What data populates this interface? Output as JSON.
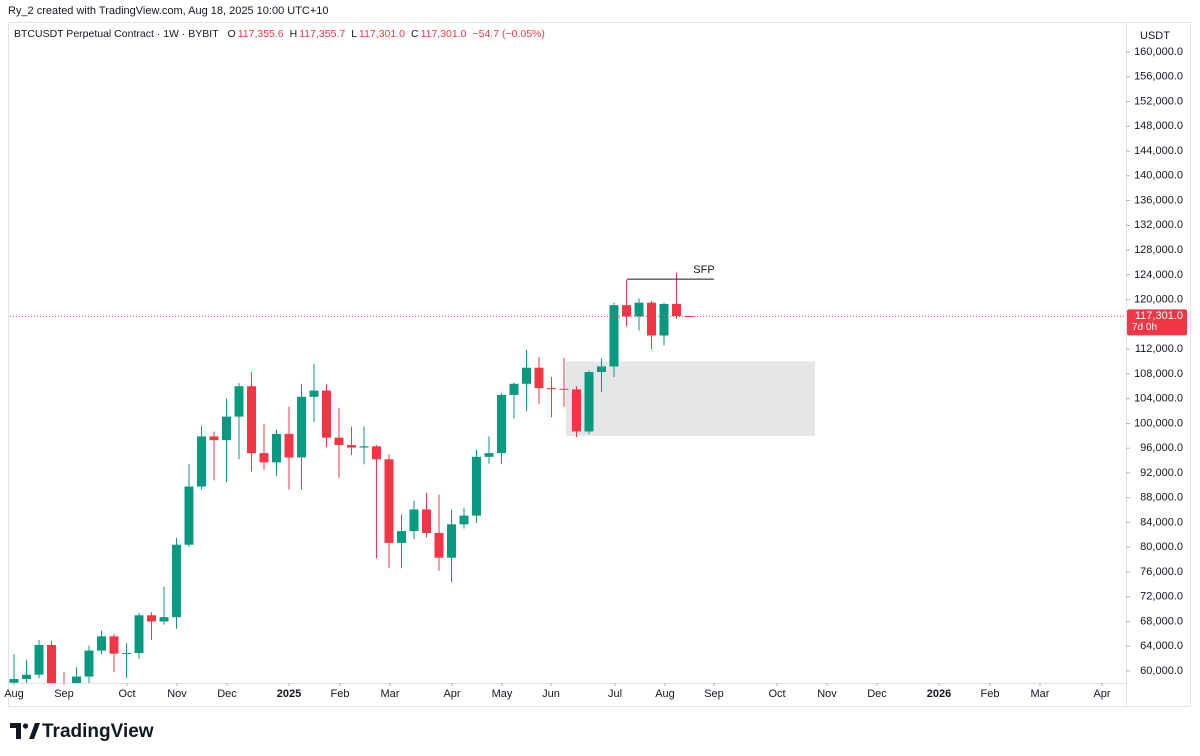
{
  "chart_data": {
    "type": "candlestick",
    "caption": "Ry_2 created with TradingView.com, Aug 18, 2025 10:00 UTC+10",
    "symbol": "BTCUSDT Perpetual Contract · 1W · BYBIT",
    "ohlc_legend": [
      {
        "key": "O",
        "value": "117,355.6"
      },
      {
        "key": "H",
        "value": "117,355.7"
      },
      {
        "key": "L",
        "value": "117,301.0"
      },
      {
        "key": "C",
        "value": "117,301.0"
      }
    ],
    "change": "−54.7 (−0.05%)",
    "currency": "USDT",
    "last_price_label": "117,301.0",
    "countdown": "7d 0h",
    "up_color": "#089981",
    "down_color": "#f23645",
    "open": [
      58100,
      58700,
      59400,
      64200,
      57300,
      54800,
      59100,
      63300,
      65600,
      62800,
      62900,
      69000,
      68000,
      68700,
      80400,
      89800,
      97900,
      97300,
      101100,
      106000,
      95200,
      93700,
      98300,
      94500,
      104300,
      105300,
      97700,
      96500,
      96100,
      96300,
      94200,
      80700,
      82600,
      86100,
      82300,
      78300,
      83700,
      85100,
      94600,
      95200,
      104600,
      106400,
      109000,
      105700,
      105600,
      105500,
      98700,
      108300,
      109200,
      119100,
      117300,
      119500,
      114200,
      119300,
      117355.6
    ],
    "high": [
      62700,
      61800,
      65000,
      64900,
      59800,
      60600,
      64100,
      66500,
      66000,
      64500,
      69400,
      69500,
      73600,
      81500,
      93400,
      99600,
      98700,
      104000,
      106500,
      108300,
      99900,
      99000,
      102700,
      106400,
      109600,
      106300,
      102500,
      99500,
      99500,
      96500,
      95000,
      85300,
      87500,
      88800,
      88500,
      86100,
      86400,
      95700,
      97900,
      104900,
      106600,
      111900,
      110700,
      107500,
      110600,
      106000,
      108500,
      110500,
      119500,
      123200,
      120200,
      119800,
      119500,
      124400,
      117355.7
    ],
    "low": [
      54600,
      56100,
      58800,
      57200,
      52500,
      52500,
      57500,
      62700,
      59800,
      58900,
      62000,
      65000,
      67500,
      66800,
      80100,
      89300,
      90800,
      90500,
      94200,
      92200,
      92500,
      91500,
      89300,
      89300,
      100200,
      96200,
      91200,
      94900,
      93400,
      78200,
      76600,
      76600,
      81300,
      81600,
      76200,
      74400,
      83000,
      83900,
      93500,
      93400,
      100800,
      102000,
      103100,
      101000,
      102700,
      97800,
      98300,
      105100,
      107500,
      115700,
      115000,
      112000,
      112600,
      116900,
      117301
    ],
    "close": [
      58700,
      59400,
      64200,
      57300,
      54800,
      59100,
      63300,
      65600,
      62800,
      62900,
      69000,
      68000,
      68700,
      80400,
      89800,
      97900,
      97300,
      101100,
      106000,
      95200,
      93700,
      98300,
      94500,
      104300,
      105300,
      97700,
      96500,
      96100,
      96300,
      94200,
      80700,
      82600,
      86100,
      82300,
      78300,
      83700,
      85100,
      94600,
      95200,
      104600,
      106400,
      109000,
      105700,
      105600,
      105500,
      98700,
      108300,
      109200,
      119100,
      117300,
      119500,
      114200,
      119300,
      117356,
      117301
    ],
    "zone": {
      "low": 98000,
      "high": 110000,
      "color": "#e0e1e3"
    },
    "annotation": {
      "label": "SFP",
      "price": 123300
    },
    "xlim": [
      -0.32,
      88.96
    ],
    "xticks": [
      {
        "value": 0,
        "label": "Aug"
      },
      {
        "value": 4,
        "label": "Sep"
      },
      {
        "value": 9.04,
        "label": "Oct"
      },
      {
        "value": 13.04,
        "label": "Nov"
      },
      {
        "value": 17.04,
        "label": "Dec"
      },
      {
        "value": 22,
        "label": "2025"
      },
      {
        "value": 26.08,
        "label": "Feb"
      },
      {
        "value": 30.08,
        "label": "Mar"
      },
      {
        "value": 35.04,
        "label": "Apr"
      },
      {
        "value": 39.04,
        "label": "May"
      },
      {
        "value": 42.96,
        "label": "Jun"
      },
      {
        "value": 48.08,
        "label": "Jul"
      },
      {
        "value": 52.08,
        "label": "Aug"
      },
      {
        "value": 56,
        "label": "Sep"
      },
      {
        "value": 61.04,
        "label": "Oct"
      },
      {
        "value": 65.04,
        "label": "Nov"
      },
      {
        "value": 69.04,
        "label": "Dec"
      },
      {
        "value": 74,
        "label": "2026"
      },
      {
        "value": 78.08,
        "label": "Feb"
      },
      {
        "value": 82.08,
        "label": "Mar"
      },
      {
        "value": 87.04,
        "label": "Apr"
      }
    ],
    "ylim": [
      58060,
      164850
    ],
    "yticks": [
      {
        "value": 60000,
        "label": "60,000.0"
      },
      {
        "value": 64000,
        "label": "64,000.0"
      },
      {
        "value": 68000,
        "label": "68,000.0"
      },
      {
        "value": 72000,
        "label": "72,000.0"
      },
      {
        "value": 76000,
        "label": "76,000.0"
      },
      {
        "value": 80000,
        "label": "80,000.0"
      },
      {
        "value": 84000,
        "label": "84,000.0"
      },
      {
        "value": 88000,
        "label": "88,000.0"
      },
      {
        "value": 92000,
        "label": "92,000.0"
      },
      {
        "value": 96000,
        "label": "96,000.0"
      },
      {
        "value": 100000,
        "label": "100,000.0"
      },
      {
        "value": 104000,
        "label": "104,000.0"
      },
      {
        "value": 108000,
        "label": "108,000.0"
      },
      {
        "value": 112000,
        "label": "112,000.0"
      },
      {
        "value": 116000,
        "label": "116,000.0"
      },
      {
        "value": 120000,
        "label": "120,000.0"
      },
      {
        "value": 124000,
        "label": "124,000.0"
      },
      {
        "value": 128000,
        "label": "128,000.0"
      },
      {
        "value": 132000,
        "label": "132,000.0"
      },
      {
        "value": 136000,
        "label": "136,000.0"
      },
      {
        "value": 140000,
        "label": "140,000.0"
      },
      {
        "value": 144000,
        "label": "144,000.0"
      },
      {
        "value": 148000,
        "label": "148,000.0"
      },
      {
        "value": 152000,
        "label": "152,000.0"
      },
      {
        "value": 156000,
        "label": "156,000.0"
      },
      {
        "value": 160000,
        "label": "160,000.0"
      }
    ],
    "grid": false,
    "brand": "TradingView"
  }
}
